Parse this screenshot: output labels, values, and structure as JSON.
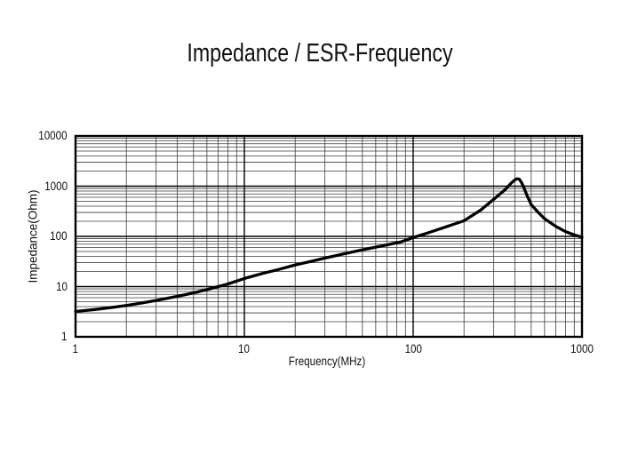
{
  "title": "Impedance / ESR-Frequency",
  "chart_data": {
    "type": "line",
    "title": "Impedance / ESR-Frequency",
    "xlabel": "Frequency(MHz)",
    "ylabel": "Impedance(Ohm)",
    "x_scale": "log",
    "y_scale": "log",
    "xlim": [
      1,
      1000
    ],
    "ylim": [
      1,
      10000
    ],
    "x_ticks": [
      "1",
      "10",
      "100",
      "1000"
    ],
    "y_ticks": [
      "10000",
      "1000",
      "100",
      "10",
      "1"
    ],
    "grid": "log major and minor gridlines, both axes",
    "legend_position": "none",
    "colors": {
      "curve": "#000000",
      "major_grid": "#000000",
      "minor_grid": "#3c3c3c",
      "border": "#000000",
      "background": "#ffffff"
    },
    "series": [
      {
        "name": "Impedance",
        "points": [
          [
            1,
            3.2
          ],
          [
            1.3,
            3.5
          ],
          [
            1.6,
            3.8
          ],
          [
            2,
            4.2
          ],
          [
            2.5,
            4.75
          ],
          [
            3,
            5.3
          ],
          [
            4,
            6.4
          ],
          [
            5,
            7.5
          ],
          [
            6,
            8.7
          ],
          [
            7,
            10
          ],
          [
            8,
            11.3
          ],
          [
            10,
            14.5
          ],
          [
            13,
            18.5
          ],
          [
            16,
            22
          ],
          [
            20,
            27
          ],
          [
            25,
            32
          ],
          [
            30,
            37
          ],
          [
            40,
            46
          ],
          [
            50,
            54
          ],
          [
            60,
            61
          ],
          [
            70,
            68
          ],
          [
            85,
            78
          ],
          [
            100,
            95
          ],
          [
            120,
            115
          ],
          [
            150,
            148
          ],
          [
            200,
            205
          ],
          [
            250,
            330
          ],
          [
            300,
            550
          ],
          [
            350,
            850
          ],
          [
            380,
            1150
          ],
          [
            400,
            1330
          ],
          [
            412,
            1400
          ],
          [
            425,
            1380
          ],
          [
            440,
            1150
          ],
          [
            455,
            900
          ],
          [
            470,
            680
          ],
          [
            500,
            430
          ],
          [
            550,
            300
          ],
          [
            600,
            225
          ],
          [
            650,
            187
          ],
          [
            700,
            158
          ],
          [
            800,
            124
          ],
          [
            900,
            107
          ],
          [
            1000,
            96
          ]
        ]
      }
    ],
    "annotations": {
      "peak": {
        "frequency_mhz": 412,
        "impedance_ohm": 1400
      },
      "value_at_1mhz_ohm": 3.2,
      "value_at_100mhz_ohm": 95,
      "value_at_1000mhz_ohm": 96
    }
  }
}
